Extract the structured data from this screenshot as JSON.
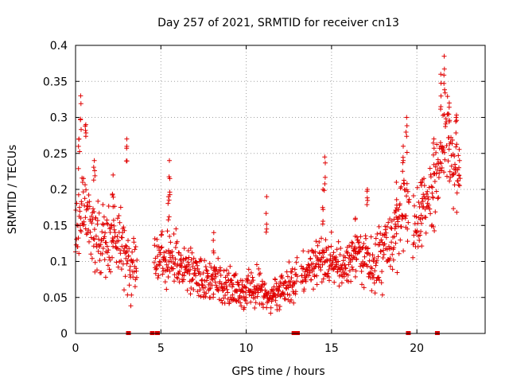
{
  "chart_data": {
    "type": "scatter",
    "title": "Day 257 of 2021, SRMTID for receiver cn13",
    "xlabel": "GPS time / hours",
    "ylabel": "SRMTID / TECUs",
    "xlim": [
      0,
      24
    ],
    "ylim": [
      0,
      0.4
    ],
    "grid": true,
    "marker": "+",
    "series_color": "#e00000",
    "x_ticks": [
      0,
      5,
      10,
      15,
      20
    ],
    "x_tick_labels": [
      "0",
      "5",
      "10",
      "15",
      "20"
    ],
    "y_ticks": [
      0,
      0.05,
      0.1,
      0.15,
      0.2,
      0.25,
      0.3,
      0.35,
      0.4
    ],
    "y_tick_labels": [
      "0",
      "0.05",
      "0.1",
      "0.15",
      "0.2",
      "0.25",
      "0.3",
      "0.35",
      "0.4"
    ],
    "envelope": [
      {
        "x": 0.0,
        "y": 0.14
      },
      {
        "x": 0.5,
        "y": 0.17
      },
      {
        "x": 1.0,
        "y": 0.15
      },
      {
        "x": 1.5,
        "y": 0.12
      },
      {
        "x": 2.0,
        "y": 0.13
      },
      {
        "x": 2.6,
        "y": 0.14
      },
      {
        "x": 3.2,
        "y": 0.09
      },
      {
        "x": 4.6,
        "y": 0.1
      },
      {
        "x": 5.5,
        "y": 0.11
      },
      {
        "x": 6.5,
        "y": 0.09
      },
      {
        "x": 7.5,
        "y": 0.07
      },
      {
        "x": 8.5,
        "y": 0.075
      },
      {
        "x": 9.5,
        "y": 0.055
      },
      {
        "x": 10.5,
        "y": 0.06
      },
      {
        "x": 11.5,
        "y": 0.055
      },
      {
        "x": 12.5,
        "y": 0.065
      },
      {
        "x": 13.5,
        "y": 0.09
      },
      {
        "x": 14.5,
        "y": 0.11
      },
      {
        "x": 15.5,
        "y": 0.085
      },
      {
        "x": 16.5,
        "y": 0.11
      },
      {
        "x": 17.5,
        "y": 0.1
      },
      {
        "x": 18.5,
        "y": 0.12
      },
      {
        "x": 19.3,
        "y": 0.17
      },
      {
        "x": 19.8,
        "y": 0.14
      },
      {
        "x": 20.3,
        "y": 0.16
      },
      {
        "x": 21.0,
        "y": 0.2
      },
      {
        "x": 21.6,
        "y": 0.27
      },
      {
        "x": 22.0,
        "y": 0.26
      },
      {
        "x": 22.5,
        "y": 0.2
      }
    ],
    "spread": [
      {
        "x": 0.0,
        "y": 0.08
      },
      {
        "x": 3.0,
        "y": 0.07
      },
      {
        "x": 5.0,
        "y": 0.06
      },
      {
        "x": 8.0,
        "y": 0.04
      },
      {
        "x": 12.0,
        "y": 0.04
      },
      {
        "x": 16.0,
        "y": 0.05
      },
      {
        "x": 19.0,
        "y": 0.07
      },
      {
        "x": 21.0,
        "y": 0.09
      },
      {
        "x": 22.5,
        "y": 0.1
      }
    ],
    "gaps": [
      [
        3.6,
        4.6
      ],
      [
        13.0,
        13.2
      ],
      [
        19.55,
        19.75
      ]
    ],
    "point_spacing_hours": 0.018,
    "spikes": [
      {
        "x": 0.3,
        "y": 0.33
      },
      {
        "x": 0.6,
        "y": 0.29
      },
      {
        "x": 0.2,
        "y": 0.27
      },
      {
        "x": 1.1,
        "y": 0.24
      },
      {
        "x": 2.2,
        "y": 0.22
      },
      {
        "x": 3.0,
        "y": 0.27
      },
      {
        "x": 5.5,
        "y": 0.24
      },
      {
        "x": 5.45,
        "y": 0.19
      },
      {
        "x": 8.1,
        "y": 0.14
      },
      {
        "x": 11.2,
        "y": 0.19
      },
      {
        "x": 14.6,
        "y": 0.245
      },
      {
        "x": 14.5,
        "y": 0.2
      },
      {
        "x": 16.4,
        "y": 0.16
      },
      {
        "x": 17.1,
        "y": 0.2
      },
      {
        "x": 18.8,
        "y": 0.21
      },
      {
        "x": 19.2,
        "y": 0.26
      },
      {
        "x": 19.4,
        "y": 0.3
      },
      {
        "x": 20.3,
        "y": 0.21
      },
      {
        "x": 21.0,
        "y": 0.27
      },
      {
        "x": 21.6,
        "y": 0.385
      },
      {
        "x": 21.4,
        "y": 0.36
      },
      {
        "x": 21.9,
        "y": 0.32
      },
      {
        "x": 22.3,
        "y": 0.3
      },
      {
        "x": 22.5,
        "y": 0.24
      }
    ],
    "zero_markers": [
      3.1,
      4.5,
      4.8,
      12.8,
      13.0,
      19.5,
      21.2
    ]
  }
}
